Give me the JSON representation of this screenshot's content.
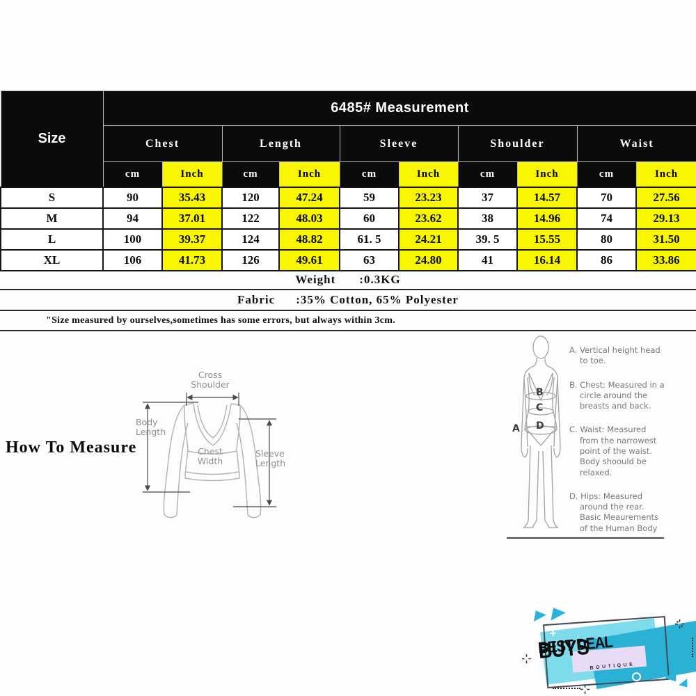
{
  "table": {
    "title": "6485# Measurement",
    "size_label": "Size",
    "groups": [
      "Chest",
      "Length",
      "Sleeve",
      "Shoulder",
      "Waist"
    ],
    "unit_cm": "cm",
    "unit_inch": "Inch",
    "rows": [
      {
        "size": "S",
        "values": [
          "90",
          "35.43",
          "120",
          "47.24",
          "59",
          "23.23",
          "37",
          "14.57",
          "70",
          "27.56"
        ]
      },
      {
        "size": "M",
        "values": [
          "94",
          "37.01",
          "122",
          "48.03",
          "60",
          "23.62",
          "38",
          "14.96",
          "74",
          "29.13"
        ]
      },
      {
        "size": "L",
        "values": [
          "100",
          "39.37",
          "124",
          "48.82",
          "61. 5",
          "24.21",
          "39. 5",
          "15.55",
          "80",
          "31.50"
        ]
      },
      {
        "size": "XL",
        "values": [
          "106",
          "41.73",
          "126",
          "49.61",
          "63",
          "24.80",
          "41",
          "16.14",
          "86",
          "33.86"
        ]
      }
    ]
  },
  "info": {
    "weight_label": "Weight",
    "weight_value": ":0.3KG",
    "fabric_label": "Fabric",
    "fabric_value": ":35% Cotton, 65% Polyester",
    "note": "\"Size measured by ourselves,sometimes has some errors, but always within 3cm."
  },
  "how_to_measure": {
    "heading": "How To Measure",
    "garment_labels": {
      "cross_shoulder": "Cross\nShoulder",
      "body_length": "Body\nLength",
      "chest_width": "Chest\nWidth",
      "sleeve_length": "Sleeve\nLength"
    },
    "figure_letters": {
      "a": "A",
      "b": "B",
      "c": "C",
      "d": "D"
    },
    "instructions": [
      {
        "text": "A. Vertical height head\nto toe."
      },
      {
        "text": "B. Chest: Measured in a\ncircle around the\nbreasts and back."
      },
      {
        "text": "C. Waist: Measured\nfrom the narrowest\npoint of the waist.\nBody shoould be\nrelaxed."
      },
      {
        "text": "D. Hips: Measured\naround the rear.\nBasic Meaurements\nof the Human Body"
      }
    ]
  },
  "logo": {
    "title": "BEST DEAL",
    "title_emph": "BUYS",
    "subtitle": "BOUTIQUE",
    "colors": {
      "light_cyan": "#7edbec",
      "teal": "#29b2d6",
      "lavender": "#e8dbf5",
      "outline": "#434a55",
      "text": "#0b0b0b"
    }
  },
  "colors": {
    "highlight_yellow": "#f8f600",
    "header_black": "#0b0b0b",
    "header_text": "#ffffff",
    "page_background": "#fdfdfd"
  }
}
